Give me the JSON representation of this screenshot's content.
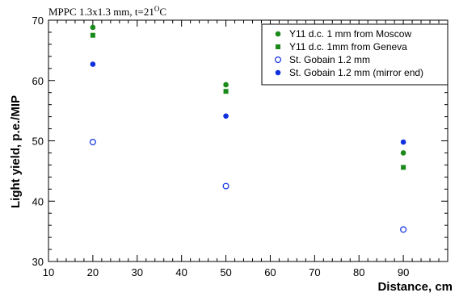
{
  "chart_data": {
    "type": "scatter",
    "title": "MPPC 1.3x1.3 mm, t=21°C",
    "title_main": "MPPC 1.3x1.3 mm, t=21",
    "title_degree": "O",
    "title_unit": "C",
    "xlabel": "Distance, cm",
    "ylabel": "Light yield, p.e./MIP",
    "xlim": [
      10,
      100
    ],
    "ylim": [
      30,
      70
    ],
    "xticks": [
      10,
      20,
      30,
      40,
      50,
      60,
      70,
      80,
      90
    ],
    "yticks": [
      30,
      40,
      50,
      60,
      70
    ],
    "grid": false,
    "legend_position": "top-right",
    "series": [
      {
        "name": "Y11 d.c. 1 mm  from Moscow",
        "marker": "circle-filled",
        "color": "#1a8a1a",
        "x": [
          20,
          50,
          90
        ],
        "y": [
          68.8,
          59.3,
          48.0
        ]
      },
      {
        "name": "Y11 d.c. 1mm  from Geneva",
        "marker": "square-filled",
        "color": "#1a8a1a",
        "x": [
          20,
          50,
          90
        ],
        "y": [
          67.5,
          58.2,
          45.6
        ]
      },
      {
        "name": "St. Gobain 1.2 mm",
        "marker": "circle-open",
        "color": "#1030e0",
        "x": [
          20,
          50,
          90
        ],
        "y": [
          49.8,
          42.5,
          35.3
        ]
      },
      {
        "name": "St. Gobain 1.2 mm (mirror end)",
        "marker": "circle-filled",
        "color": "#1030e0",
        "x": [
          20,
          50,
          90
        ],
        "y": [
          62.7,
          54.1,
          49.8
        ]
      }
    ]
  }
}
